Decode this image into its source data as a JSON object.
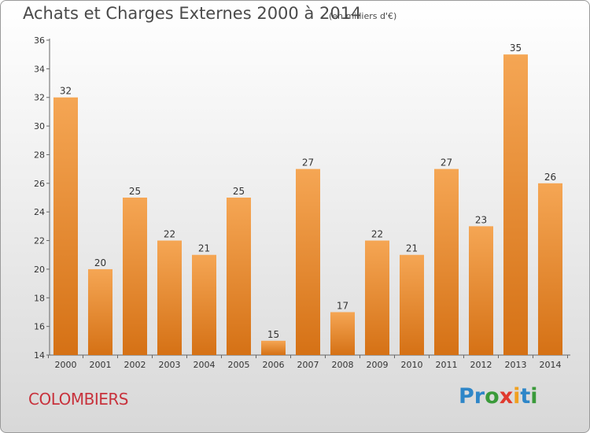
{
  "title": "Achats et Charges Externes 2000 à 2014",
  "subtitle": "(en milliers d'€)",
  "city": "COLOMBIERS",
  "logo": {
    "text": "Proxiti",
    "letters": [
      {
        "char": "P",
        "color": "#2e86c8"
      },
      {
        "char": "r",
        "color": "#2e86c8"
      },
      {
        "char": "o",
        "color": "#3a9a3a"
      },
      {
        "char": "x",
        "color": "#e03a2e"
      },
      {
        "char": "i",
        "color": "#f0a020"
      },
      {
        "char": "t",
        "color": "#2e86c8"
      },
      {
        "char": "i",
        "color": "#3a9a3a"
      }
    ]
  },
  "colors": {
    "bar_top": "#f5a654",
    "bar_bottom": "#d57115",
    "axis": "#666666",
    "label": "#333333"
  },
  "chart_data": {
    "type": "bar",
    "categories": [
      "2000",
      "2001",
      "2002",
      "2003",
      "2004",
      "2005",
      "2006",
      "2007",
      "2008",
      "2009",
      "2010",
      "2011",
      "2012",
      "2013",
      "2014"
    ],
    "values": [
      32,
      20,
      25,
      22,
      21,
      25,
      15,
      27,
      17,
      22,
      21,
      27,
      23,
      35,
      26
    ],
    "ylim": [
      14,
      36
    ],
    "yticks": [
      14,
      16,
      18,
      20,
      22,
      24,
      26,
      28,
      30,
      32,
      34,
      36
    ],
    "grid": false,
    "data_labels": true
  }
}
